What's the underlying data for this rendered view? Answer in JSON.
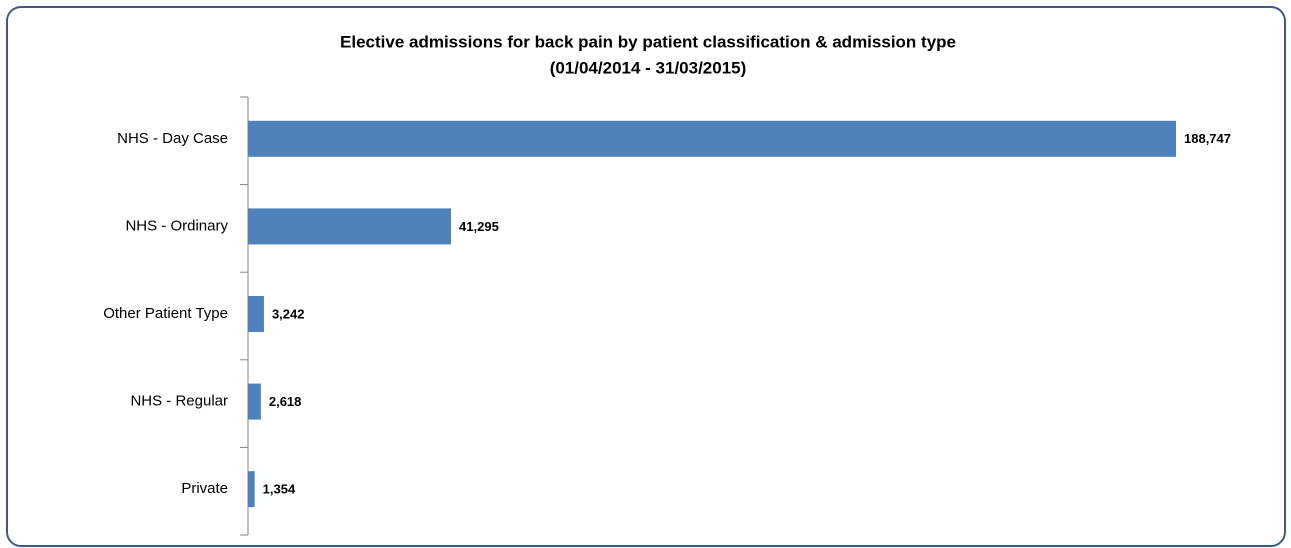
{
  "chart_data": {
    "type": "bar",
    "orientation": "horizontal",
    "title": "Elective admissions  for back pain by patient classification  & admission  type",
    "subtitle": "(01/04/2014 - 31/03/2015)",
    "categories": [
      "NHS  - Day Case",
      "NHS  - Ordinary",
      "Other Patient Type",
      "NHS  - Regular",
      "Private"
    ],
    "values": [
      188747,
      41295,
      3242,
      2618,
      1354
    ],
    "value_labels": [
      "188,747",
      "41,295",
      "3,242",
      "2,618",
      "1,354"
    ],
    "color": "#4f81bd"
  }
}
